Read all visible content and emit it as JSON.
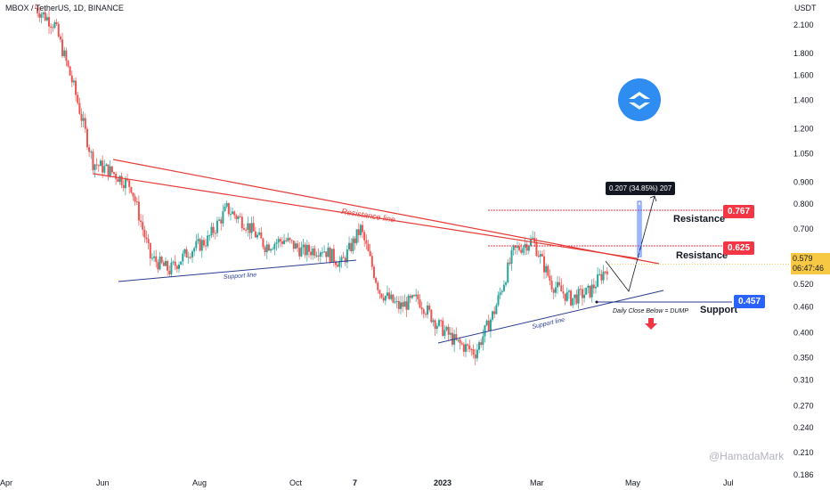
{
  "header": {
    "symbol": "MBOX / TetherUS, 1D, BINANCE"
  },
  "axis": {
    "currency": "USDT",
    "y_ticks": [
      "2.100",
      "1.800",
      "1.600",
      "1.400",
      "1.200",
      "1.050",
      "0.900",
      "0.800",
      "0.700",
      "0.600",
      "0.520",
      "0.460",
      "0.400",
      "0.350",
      "0.310",
      "0.270",
      "0.240",
      "0.210",
      "0.186"
    ],
    "x_ticks": [
      "Apr",
      "Jun",
      "Aug",
      "Oct",
      "7",
      "2023",
      "Mar",
      "May",
      "Jul"
    ]
  },
  "price_tag": {
    "price": "0.579",
    "countdown": "06:47:46",
    "color": "#f7c843"
  },
  "levels": [
    {
      "label": "Resistance",
      "value": "0.767",
      "color": "#f23645"
    },
    {
      "label": "Resistance",
      "value": "0.625",
      "color": "#f23645"
    },
    {
      "label": "Support",
      "value": "0.457",
      "color": "#2962ff"
    }
  ],
  "annotations": {
    "resistance_line": "Resistance line",
    "support_line_left": "Support line",
    "support_line_right": "Support line",
    "dump_note": "Daily Close Below = DUMP",
    "measure": "0.207 (34.85%) 207",
    "watermark": "@HamadaMark"
  },
  "colors": {
    "up": "#26a69a",
    "down": "#ef5350",
    "resistance": "#e53935",
    "support": "#2a3b8f",
    "logo": "#2f8cf0"
  },
  "chart_data": {
    "type": "candlestick",
    "y_scale": "log",
    "ylim": [
      0.18,
      2.4
    ],
    "series": [
      {
        "name": "MBOX/USDT close (approx)",
        "x": [
          "Apr",
          "Apr",
          "May",
          "May",
          "May",
          "Jun",
          "Jun",
          "Jun",
          "Jul",
          "Jul",
          "Aug",
          "Aug",
          "Aug",
          "Sep",
          "Sep",
          "Oct",
          "Oct",
          "Oct",
          "Nov",
          "Nov",
          "Dec",
          "Dec",
          "Dec",
          "2023",
          "Jan",
          "Feb",
          "Feb",
          "Mar",
          "Mar",
          "Mar",
          "Apr"
        ],
        "values": [
          2.3,
          2.1,
          1.5,
          1.0,
          0.95,
          0.88,
          0.6,
          0.56,
          0.62,
          0.66,
          0.78,
          0.72,
          0.64,
          0.66,
          0.62,
          0.63,
          0.58,
          0.7,
          0.5,
          0.46,
          0.48,
          0.42,
          0.38,
          0.36,
          0.45,
          0.62,
          0.66,
          0.52,
          0.48,
          0.5,
          0.579
        ]
      }
    ],
    "levels": {
      "resistance_1": 0.767,
      "resistance_2": 0.625,
      "support": 0.457
    }
  }
}
